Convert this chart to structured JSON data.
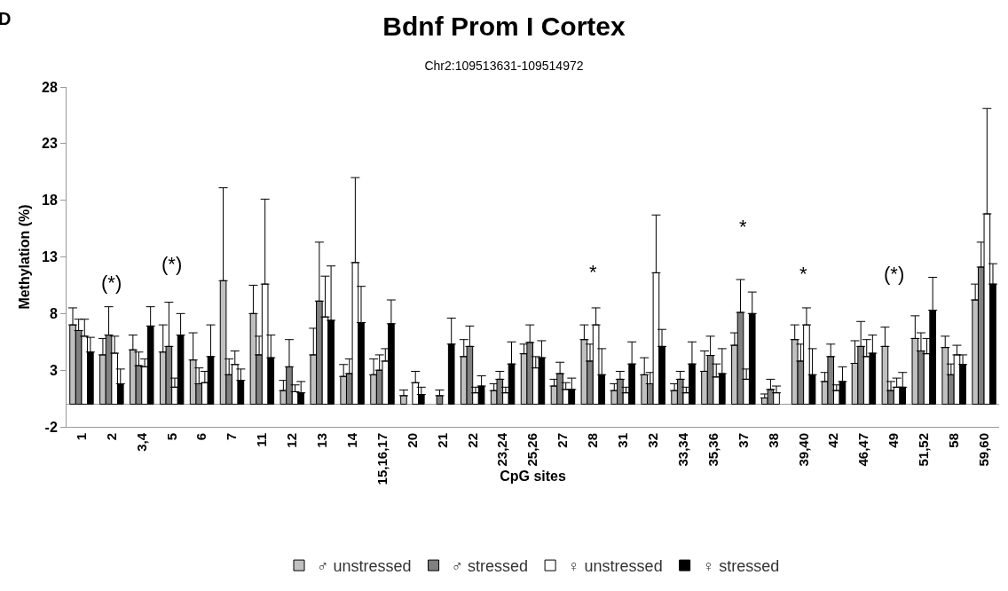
{
  "chart_data": {
    "type": "bar",
    "title": "Bdnf Prom I Cortex",
    "subtitle": "Chr2:109513631-109514972",
    "xlabel": "CpG sites",
    "ylabel": "Methylation (%)",
    "categories": [
      "1",
      "2",
      "3,4",
      "5",
      "6",
      "7",
      "11",
      "12",
      "13",
      "14",
      "15,16,17",
      "20",
      "21",
      "22",
      "23,24",
      "25,26",
      "27",
      "28",
      "31",
      "32",
      "33,34",
      "35,36",
      "37",
      "38",
      "39,40",
      "42",
      "46,47",
      "49",
      "51,52",
      "58",
      "59,60"
    ],
    "series": [
      {
        "name": "♂ unstressed",
        "color": "#c0c0c0",
        "values": [
          7.0,
          4.35,
          4.8,
          4.6,
          3.9,
          10.9,
          8.0,
          1.2,
          4.35,
          2.45,
          2.6,
          0.75,
          null,
          4.2,
          1.2,
          4.45,
          1.6,
          5.7,
          1.2,
          2.6,
          1.2,
          2.9,
          5.2,
          0.55,
          5.7,
          2.0,
          3.6,
          5.1,
          5.8,
          5.0,
          9.2
        ],
        "errors": [
          [
            7.0,
            8.5
          ],
          [
            4.35,
            5.8
          ],
          [
            4.8,
            6.1
          ],
          [
            4.6,
            7.0
          ],
          [
            3.9,
            6.3
          ],
          [
            10.9,
            19.1
          ],
          [
            8.0,
            10.5
          ],
          [
            1.2,
            2.1
          ],
          [
            4.35,
            6.7
          ],
          [
            2.45,
            3.5
          ],
          [
            2.6,
            4.0
          ],
          [
            0.75,
            1.25
          ],
          null,
          [
            4.2,
            5.7
          ],
          [
            1.2,
            1.8
          ],
          [
            4.45,
            5.3
          ],
          [
            1.6,
            2.2
          ],
          [
            5.7,
            7.0
          ],
          [
            1.2,
            1.8
          ],
          [
            2.6,
            4.1
          ],
          [
            1.2,
            1.8
          ],
          [
            2.9,
            4.7
          ],
          [
            5.2,
            6.3
          ],
          [
            0.55,
            0.9
          ],
          [
            5.7,
            7.0
          ],
          [
            2.0,
            2.8
          ],
          [
            3.6,
            5.6
          ],
          [
            5.1,
            6.8
          ],
          [
            5.8,
            7.8
          ],
          [
            5.0,
            6.0
          ],
          [
            9.2,
            10.6
          ]
        ]
      },
      {
        "name": "♂ stressed",
        "color": "#808080",
        "values": [
          6.5,
          6.1,
          3.4,
          5.1,
          1.8,
          2.6,
          4.35,
          3.3,
          9.1,
          2.7,
          3.0,
          null,
          0.75,
          5.1,
          2.2,
          5.45,
          2.7,
          3.8,
          2.2,
          1.8,
          2.2,
          4.3,
          8.1,
          1.3,
          3.8,
          4.2,
          5.1,
          1.2,
          4.7,
          2.6,
          12.1
        ],
        "errors": [
          [
            6.5,
            7.5
          ],
          [
            6.1,
            8.6
          ],
          [
            3.4,
            4.6
          ],
          [
            5.1,
            9.0
          ],
          [
            1.8,
            3.2
          ],
          [
            2.6,
            4.0
          ],
          [
            4.35,
            6.0
          ],
          [
            3.3,
            5.7
          ],
          [
            9.1,
            14.3
          ],
          [
            2.7,
            4.0
          ],
          [
            3.0,
            4.35
          ],
          null,
          [
            0.75,
            1.25
          ],
          [
            5.1,
            6.9
          ],
          [
            2.2,
            2.9
          ],
          [
            5.45,
            7.0
          ],
          [
            2.7,
            3.7
          ],
          [
            3.8,
            5.3
          ],
          [
            2.2,
            2.9
          ],
          [
            1.8,
            2.8
          ],
          [
            2.2,
            2.9
          ],
          [
            4.3,
            6.0
          ],
          [
            8.1,
            11.0
          ],
          [
            1.3,
            2.2
          ],
          [
            3.8,
            5.3
          ],
          [
            4.2,
            5.3
          ],
          [
            5.1,
            7.3
          ],
          [
            1.2,
            2.0
          ],
          [
            4.7,
            6.3
          ],
          [
            2.6,
            3.55
          ],
          [
            12.1,
            14.3
          ]
        ]
      },
      {
        "name": "♀ unstressed",
        "color": "#ffffff",
        "values": [
          6.0,
          4.5,
          3.3,
          1.5,
          1.9,
          3.5,
          10.6,
          1.1,
          7.7,
          12.5,
          3.8,
          1.9,
          null,
          1.0,
          1.0,
          3.2,
          1.3,
          7.0,
          1.0,
          11.6,
          1.0,
          2.4,
          2.2,
          1.0,
          7.0,
          1.2,
          4.2,
          1.5,
          4.45,
          4.35,
          16.8
        ],
        "errors": [
          [
            6.0,
            7.5
          ],
          [
            4.5,
            6.0
          ],
          [
            3.3,
            4.0
          ],
          [
            1.5,
            2.3
          ],
          [
            1.9,
            2.9
          ],
          [
            3.5,
            4.7
          ],
          [
            10.6,
            18.1
          ],
          [
            1.1,
            1.7
          ],
          [
            7.7,
            11.3
          ],
          [
            12.5,
            20.0
          ],
          [
            3.8,
            4.9
          ],
          [
            1.9,
            2.9
          ],
          null,
          [
            1.0,
            1.5
          ],
          [
            1.0,
            1.5
          ],
          [
            3.2,
            4.2
          ],
          [
            1.3,
            1.9
          ],
          [
            7.0,
            8.5
          ],
          [
            1.0,
            1.5
          ],
          [
            11.6,
            16.7
          ],
          [
            1.0,
            1.5
          ],
          [
            2.4,
            3.55
          ],
          [
            2.2,
            3.1
          ],
          [
            1.0,
            1.6
          ],
          [
            7.0,
            8.5
          ],
          [
            1.2,
            1.7
          ],
          [
            4.2,
            5.7
          ],
          [
            1.5,
            2.3
          ],
          [
            4.45,
            5.8
          ],
          [
            4.35,
            5.2
          ],
          [
            16.8,
            26.1
          ]
        ]
      },
      {
        "name": "♀ stressed",
        "color": "#000000",
        "values": [
          4.6,
          1.8,
          6.9,
          6.1,
          4.2,
          2.1,
          4.1,
          1.0,
          7.4,
          7.2,
          7.1,
          0.85,
          5.3,
          1.6,
          3.55,
          4.1,
          1.3,
          2.6,
          3.55,
          5.1,
          3.55,
          2.7,
          8.0,
          null,
          2.6,
          2.0,
          4.5,
          1.5,
          8.3,
          3.5,
          10.6
        ],
        "errors": [
          [
            4.6,
            5.9
          ],
          [
            1.8,
            3.1
          ],
          [
            6.9,
            8.6
          ],
          [
            6.1,
            8.0
          ],
          [
            4.2,
            7.0
          ],
          [
            2.1,
            3.1
          ],
          [
            4.1,
            6.1
          ],
          [
            1.0,
            2.0
          ],
          [
            7.4,
            12.2
          ],
          [
            7.2,
            10.4
          ],
          [
            7.1,
            9.2
          ],
          [
            0.85,
            1.5
          ],
          [
            5.3,
            7.6
          ],
          [
            1.6,
            2.5
          ],
          [
            3.55,
            5.5
          ],
          [
            4.1,
            5.6
          ],
          [
            1.3,
            2.3
          ],
          [
            2.6,
            4.9
          ],
          [
            3.55,
            5.5
          ],
          [
            5.1,
            6.6
          ],
          [
            3.55,
            5.5
          ],
          [
            2.7,
            4.9
          ],
          [
            8.0,
            9.9
          ],
          null,
          [
            2.6,
            4.9
          ],
          [
            2.0,
            3.3
          ],
          [
            4.5,
            6.1
          ],
          [
            1.5,
            2.8
          ],
          [
            8.3,
            11.2
          ],
          [
            3.5,
            4.35
          ],
          [
            10.6,
            12.4
          ]
        ]
      }
    ],
    "ylim": [
      -2,
      28
    ],
    "yticks": [
      -2,
      3,
      8,
      13,
      18,
      23,
      28
    ],
    "grid": false,
    "legend": "bottom",
    "annotations": [
      "D",
      "(*)",
      "(*)",
      "*",
      "*",
      "*",
      "(*)"
    ]
  }
}
